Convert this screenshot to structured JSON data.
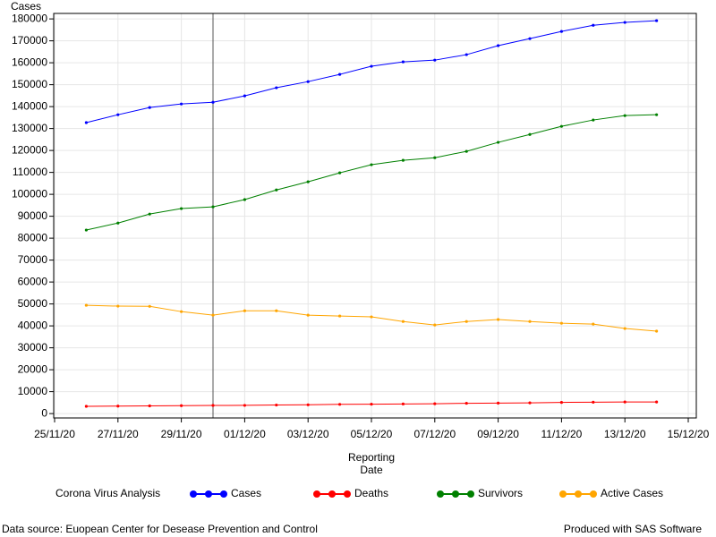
{
  "chart_data": {
    "type": "line",
    "y_label": "Cases",
    "x_label": [
      "Reporting",
      "Date"
    ],
    "legend_title": "Corona Virus Analysis",
    "footnote_left": "Data source: Euopean Center for Desease Prevention and Control",
    "footnote_right": "Produced with SAS Software",
    "x": [
      "26/11/20",
      "27/11/20",
      "28/11/20",
      "29/11/20",
      "30/11/20",
      "01/12/20",
      "02/12/20",
      "03/12/20",
      "04/12/20",
      "05/12/20",
      "06/12/20",
      "07/12/20",
      "08/12/20",
      "09/12/20",
      "10/12/20",
      "11/12/20",
      "12/12/20",
      "13/12/20",
      "14/12/20"
    ],
    "series": [
      {
        "name": "Cases",
        "color": "#0000ff",
        "values": [
          132700,
          136300,
          139600,
          141200,
          142000,
          144900,
          148600,
          151400,
          154700,
          158400,
          160400,
          161200,
          163700,
          167800,
          171000,
          174300,
          177100,
          178400,
          179200
        ]
      },
      {
        "name": "Deaths",
        "color": "#ff0000",
        "values": [
          3300,
          3400,
          3500,
          3600,
          3700,
          3750,
          3900,
          4000,
          4200,
          4300,
          4400,
          4500,
          4700,
          4800,
          4900,
          5100,
          5200,
          5300,
          5300
        ]
      },
      {
        "name": "Survivors",
        "color": "#008000",
        "values": [
          83700,
          86900,
          91000,
          93500,
          94300,
          97600,
          102000,
          105700,
          109800,
          113500,
          115500,
          116700,
          119600,
          123700,
          127300,
          131000,
          133900,
          135900,
          136300
        ]
      },
      {
        "name": "Active Cases",
        "color": "#ffa500",
        "values": [
          49400,
          49000,
          48900,
          46500,
          44900,
          46900,
          46900,
          44900,
          44500,
          44100,
          42000,
          40400,
          42000,
          42900,
          42000,
          41200,
          40800,
          38800,
          37600
        ]
      }
    ],
    "xlim": [
      "25/11/20",
      "15/12/20"
    ],
    "xticks": [
      "25/11/20",
      "27/11/20",
      "29/11/20",
      "01/12/20",
      "03/12/20",
      "05/12/20",
      "07/12/20",
      "09/12/20",
      "11/12/20",
      "13/12/20",
      "15/12/20"
    ],
    "reference_line_x": "30/11/20",
    "ylim": [
      -2000,
      182500
    ],
    "yticks": [
      0,
      10000,
      20000,
      30000,
      40000,
      50000,
      60000,
      70000,
      80000,
      90000,
      100000,
      110000,
      120000,
      130000,
      140000,
      150000,
      160000,
      170000,
      180000
    ],
    "grid": true
  }
}
